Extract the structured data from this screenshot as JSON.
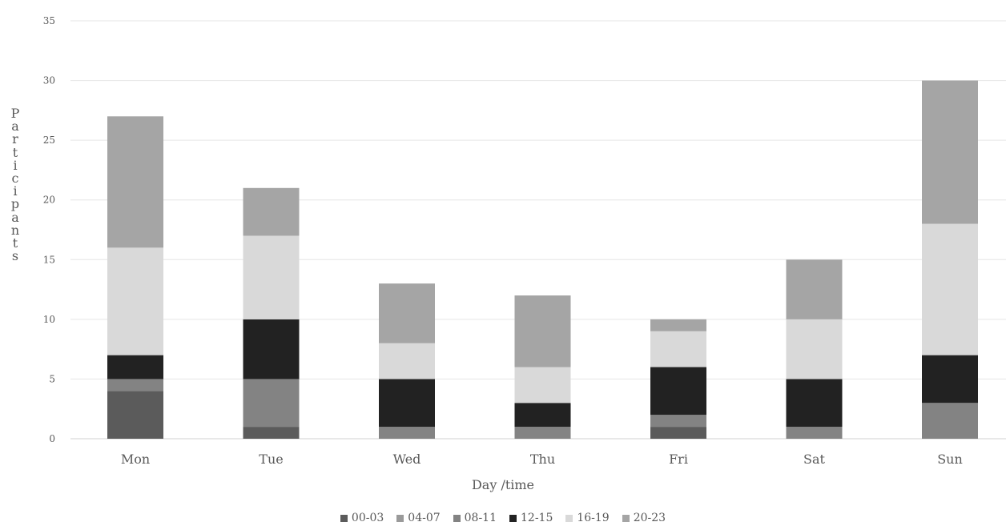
{
  "chart_data": {
    "type": "bar",
    "stacked": true,
    "categories": [
      "Mon",
      "Tue",
      "Wed",
      "Thu",
      "Fri",
      "Sat",
      "Sun"
    ],
    "series": [
      {
        "name": "00-03",
        "color": "#5b5b5b",
        "values": [
          4,
          1,
          0,
          0,
          1,
          0,
          0
        ]
      },
      {
        "name": "04-07",
        "color": "#9a9a9a",
        "values": [
          0,
          0,
          0,
          0,
          0,
          0,
          0
        ]
      },
      {
        "name": "08-11",
        "color": "#838383",
        "values": [
          1,
          4,
          1,
          1,
          1,
          1,
          3
        ]
      },
      {
        "name": "12-15",
        "color": "#222222",
        "values": [
          2,
          5,
          4,
          2,
          4,
          4,
          4
        ]
      },
      {
        "name": "16-19",
        "color": "#d9d9d9",
        "values": [
          9,
          7,
          3,
          3,
          3,
          5,
          11
        ]
      },
      {
        "name": "20-23",
        "color": "#a5a5a5",
        "values": [
          11,
          4,
          5,
          6,
          1,
          5,
          12
        ]
      }
    ],
    "xlabel": "Day /time",
    "ylabel": "Participants",
    "ylim": [
      0,
      35
    ],
    "yticks": [
      0,
      5,
      10,
      15,
      20,
      25,
      30,
      35
    ],
    "grid": true,
    "legend_position": "bottom"
  }
}
